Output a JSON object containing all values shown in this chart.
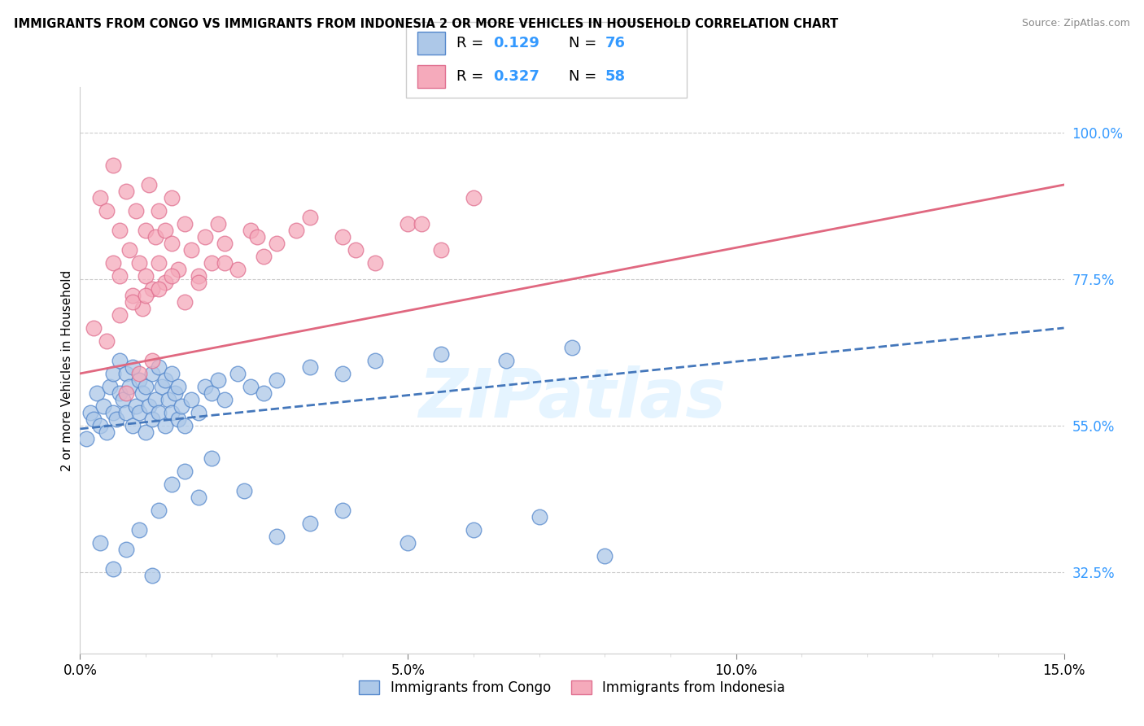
{
  "title": "IMMIGRANTS FROM CONGO VS IMMIGRANTS FROM INDONESIA 2 OR MORE VEHICLES IN HOUSEHOLD CORRELATION CHART",
  "source": "Source: ZipAtlas.com",
  "ylabel": "2 or more Vehicles in Household",
  "x_min": 0.0,
  "x_max": 15.0,
  "y_min": 20.0,
  "y_max": 107.0,
  "x_ticks": [
    0.0,
    5.0,
    10.0,
    15.0
  ],
  "x_tick_labels": [
    "0.0%",
    "5.0%",
    "10.0%",
    "15.0%"
  ],
  "y_ticks_right": [
    32.5,
    55.0,
    77.5,
    100.0
  ],
  "y_tick_labels_right": [
    "32.5%",
    "55.0%",
    "77.5%",
    "100.0%"
  ],
  "congo_color": "#adc8e8",
  "congo_edge": "#5588cc",
  "indonesia_color": "#f5aabb",
  "indonesia_edge": "#e07090",
  "trend_congo_color": "#4477bb",
  "trend_indonesia_color": "#e06880",
  "watermark": "ZIPatlas",
  "legend_labels": [
    "Immigrants from Congo",
    "Immigrants from Indonesia"
  ],
  "congo_x": [
    0.1,
    0.15,
    0.2,
    0.25,
    0.3,
    0.35,
    0.4,
    0.45,
    0.5,
    0.5,
    0.55,
    0.6,
    0.6,
    0.65,
    0.7,
    0.7,
    0.75,
    0.8,
    0.8,
    0.85,
    0.9,
    0.9,
    0.95,
    1.0,
    1.0,
    1.05,
    1.1,
    1.1,
    1.15,
    1.2,
    1.2,
    1.25,
    1.3,
    1.3,
    1.35,
    1.4,
    1.4,
    1.45,
    1.5,
    1.5,
    1.55,
    1.6,
    1.7,
    1.8,
    1.9,
    2.0,
    2.1,
    2.2,
    2.4,
    2.6,
    2.8,
    3.0,
    3.5,
    4.0,
    4.5,
    5.5,
    6.5,
    7.5,
    1.2,
    1.4,
    1.6,
    1.8,
    2.0,
    2.5,
    3.0,
    3.5,
    4.0,
    5.0,
    6.0,
    7.0,
    8.0,
    0.3,
    0.5,
    0.7,
    0.9,
    1.1
  ],
  "congo_y": [
    53,
    57,
    56,
    60,
    55,
    58,
    54,
    61,
    57,
    63,
    56,
    60,
    65,
    59,
    57,
    63,
    61,
    55,
    64,
    58,
    57,
    62,
    60,
    54,
    61,
    58,
    56,
    63,
    59,
    57,
    64,
    61,
    55,
    62,
    59,
    57,
    63,
    60,
    56,
    61,
    58,
    55,
    59,
    57,
    61,
    60,
    62,
    59,
    63,
    61,
    60,
    62,
    64,
    63,
    65,
    66,
    65,
    67,
    42,
    46,
    48,
    44,
    50,
    45,
    38,
    40,
    42,
    37,
    39,
    41,
    35,
    37,
    33,
    36,
    39,
    32
  ],
  "indonesia_x": [
    0.2,
    0.3,
    0.4,
    0.5,
    0.5,
    0.6,
    0.6,
    0.7,
    0.75,
    0.8,
    0.85,
    0.9,
    0.95,
    1.0,
    1.0,
    1.05,
    1.1,
    1.15,
    1.2,
    1.2,
    1.3,
    1.3,
    1.4,
    1.4,
    1.5,
    1.6,
    1.7,
    1.8,
    1.9,
    2.0,
    2.1,
    2.2,
    2.4,
    2.6,
    2.8,
    3.0,
    3.5,
    4.0,
    4.5,
    5.0,
    5.5,
    6.0,
    0.4,
    0.6,
    0.8,
    1.0,
    1.2,
    1.4,
    1.6,
    1.8,
    2.2,
    2.7,
    3.3,
    4.2,
    5.2,
    0.7,
    0.9,
    1.1
  ],
  "indonesia_y": [
    70,
    90,
    88,
    80,
    95,
    85,
    78,
    91,
    82,
    75,
    88,
    80,
    73,
    85,
    78,
    92,
    76,
    84,
    80,
    88,
    77,
    85,
    83,
    90,
    79,
    86,
    82,
    78,
    84,
    80,
    86,
    83,
    79,
    85,
    81,
    83,
    87,
    84,
    80,
    86,
    82,
    90,
    68,
    72,
    74,
    75,
    76,
    78,
    74,
    77,
    80,
    84,
    85,
    82,
    86,
    60,
    63,
    65
  ],
  "congo_trend_x0": 0.0,
  "congo_trend_y0": 54.5,
  "congo_trend_x1": 15.0,
  "congo_trend_y1": 70.0,
  "indonesia_trend_x0": 0.0,
  "indonesia_trend_y0": 63.0,
  "indonesia_trend_x1": 15.0,
  "indonesia_trend_y1": 92.0
}
